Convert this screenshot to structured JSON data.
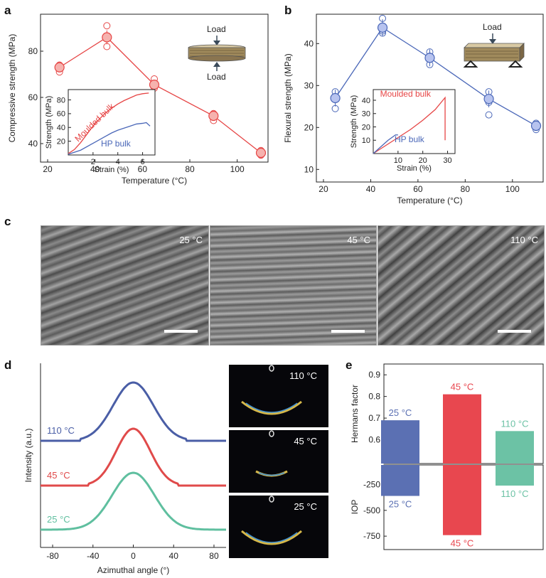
{
  "panel_letters": {
    "a": "a",
    "b": "b",
    "c": "c",
    "d": "d",
    "e": "e"
  },
  "schematic_text": {
    "load": "Load"
  },
  "chart_data": [
    {
      "panel": "a",
      "type": "line",
      "xlabel": "Temperature (°C)",
      "ylabel": "Compressive strength (MPa)",
      "xlim": [
        17,
        113
      ],
      "ylim": [
        32,
        96
      ],
      "xticks": [
        20,
        40,
        60,
        80,
        100
      ],
      "yticks": [
        40,
        60,
        80
      ],
      "color": "#e64545",
      "x": [
        25,
        45,
        65,
        90,
        110
      ],
      "y": [
        73,
        86,
        65.5,
        52,
        36
      ],
      "error": [
        2,
        3,
        2,
        1.5,
        1
      ],
      "replicates": [
        [
          71,
          74,
          73
        ],
        [
          82,
          86,
          91
        ],
        [
          64,
          68,
          65
        ],
        [
          50,
          52,
          53
        ],
        [
          35,
          37,
          36
        ]
      ]
    },
    {
      "panel": "a-inset",
      "type": "line",
      "xlabel": "Strain (%)",
      "ylabel": "Strength (MPa)",
      "xlim": [
        0,
        7
      ],
      "ylim": [
        0,
        95
      ],
      "xticks": [
        2,
        4,
        6
      ],
      "yticks": [
        20,
        40,
        60,
        80
      ],
      "series": [
        {
          "name": "Moulded bulk",
          "color": "#e64545",
          "x": [
            0,
            0.5,
            1,
            1.5,
            2,
            2.5,
            3,
            3.5,
            4,
            4.5,
            5,
            5.5,
            6,
            6.5
          ],
          "y": [
            2,
            8,
            18,
            30,
            42,
            52,
            61,
            68,
            74,
            79,
            83,
            87,
            89,
            90
          ]
        },
        {
          "name": "HP bulk",
          "color": "#4a67b8",
          "x": [
            0,
            1,
            2,
            3,
            3.5,
            4,
            5,
            5.5,
            6,
            6.3,
            6.6
          ],
          "y": [
            1,
            7,
            17,
            27,
            32,
            36,
            42,
            45,
            46,
            47,
            42
          ]
        }
      ]
    },
    {
      "panel": "b",
      "type": "line",
      "xlabel": "Temperature (°C)",
      "ylabel": "Flexural strength (MPa)",
      "xlim": [
        17,
        113
      ],
      "ylim": [
        7,
        47
      ],
      "xticks": [
        20,
        40,
        60,
        80,
        100
      ],
      "yticks": [
        10,
        20,
        30,
        40
      ],
      "color": "#4a67b8",
      "x": [
        25,
        45,
        65,
        90,
        110
      ],
      "y": [
        27,
        43.8,
        36.6,
        26.8,
        20.4
      ],
      "error": [
        2,
        2,
        2,
        2,
        1
      ],
      "replicates": [
        [
          24.5,
          28.5,
          27
        ],
        [
          42.5,
          46,
          43
        ],
        [
          35,
          38,
          37
        ],
        [
          23,
          28.5,
          26
        ],
        [
          19.5,
          21,
          20
        ]
      ]
    },
    {
      "panel": "b-inset",
      "type": "line",
      "xlabel": "Strain (%)",
      "ylabel": "Strength (MPa)",
      "xlim": [
        0,
        33
      ],
      "ylim": [
        0,
        48
      ],
      "xticks": [
        10,
        20,
        30
      ],
      "yticks": [
        10,
        20,
        30,
        40
      ],
      "series": [
        {
          "name": "Moulded bulk",
          "color": "#e64545",
          "x": [
            0,
            5,
            10,
            15,
            20,
            25,
            29,
            29,
            29
          ],
          "y": [
            0,
            6,
            12,
            18,
            25,
            33,
            42,
            42,
            10
          ]
        },
        {
          "name": "HP bulk",
          "color": "#4a67b8",
          "x": [
            0,
            3,
            6,
            9,
            10
          ],
          "y": [
            0,
            5,
            10,
            14,
            14
          ]
        }
      ]
    },
    {
      "panel": "d",
      "type": "line",
      "xlabel": "Azimuthal angle (°)",
      "ylabel": "Intensity (a.u.)",
      "xlim": [
        -92,
        92
      ],
      "xticks": [
        -80,
        -40,
        0,
        40,
        80
      ],
      "series": [
        {
          "name": "110 °C",
          "color": "#4a5ea6",
          "sigma": 20
        },
        {
          "name": "45 °C",
          "color": "#e04a4a",
          "sigma": 17
        },
        {
          "name": "25 °C",
          "color": "#5fbf9f",
          "sigma": 21
        }
      ]
    },
    {
      "panel": "e",
      "type": "bar",
      "categories": [
        "25 °C",
        "45 °C",
        "110 °C"
      ],
      "colors": [
        "#5b70b3",
        "#e8474f",
        "#6cc2a5"
      ],
      "top": {
        "ylabel": "Hermans factor",
        "ylim": [
          0.49,
          0.95
        ],
        "yticks": [
          0.6,
          0.7,
          0.8,
          0.9
        ],
        "values": [
          0.69,
          0.81,
          0.64
        ]
      },
      "bottom": {
        "ylabel": "IOP",
        "ylim": [
          -880,
          -60
        ],
        "yticks": [
          -250,
          -500,
          -750
        ],
        "values": [
          -360,
          -740,
          -260
        ]
      }
    }
  ],
  "sem_images": [
    {
      "label": "25 °C"
    },
    {
      "label": "45 °C"
    },
    {
      "label": "110 °C"
    }
  ],
  "diffraction_images": [
    {
      "label": "110 °C"
    },
    {
      "label": "45 °C"
    },
    {
      "label": "25 °C"
    }
  ]
}
